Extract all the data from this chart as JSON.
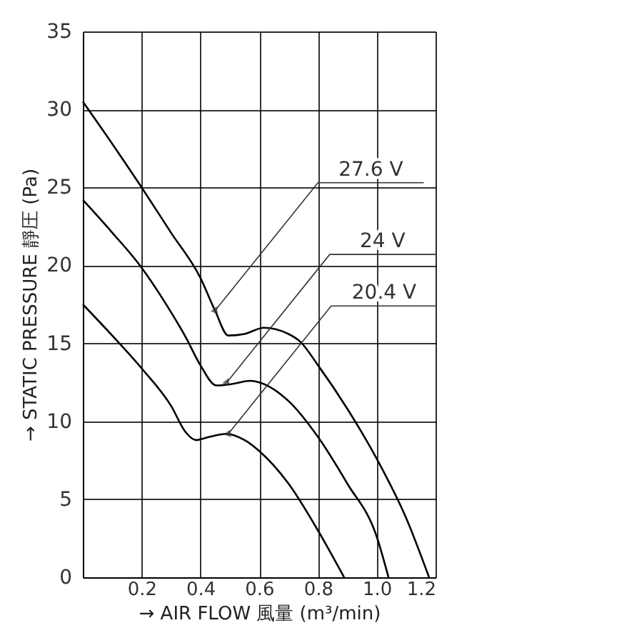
{
  "chart_data": {
    "type": "line",
    "xlabel": "→ AIR FLOW 風量 (m³/min)",
    "ylabel": "→ STATIC PRESSURE 靜圧 (Pa)",
    "xlim": [
      0,
      1.2
    ],
    "ylim": [
      0,
      35
    ],
    "xticks": [
      {
        "value": 0,
        "label": null
      },
      0.2,
      0.4,
      0.6,
      0.8,
      {
        "value": 1.0,
        "label": "1.0"
      },
      1.2
    ],
    "yticks": [
      0,
      5,
      10,
      15,
      20,
      25,
      30,
      35
    ],
    "grid": true,
    "marker": "none",
    "line_style": "solid",
    "series": [
      {
        "color": "#000000",
        "x": [
          0,
          0.1,
          0.2,
          0.3,
          0.4,
          0.45,
          0.495,
          0.55,
          0.616,
          0.7,
          0.74,
          0.8,
          0.9,
          1.0,
          1.1,
          1.178
        ],
        "values": [
          30.5,
          27.8,
          25.0,
          22.1,
          19.2,
          17.1,
          15.5,
          15.6,
          16.0,
          15.6,
          15.1,
          13.6,
          10.8,
          7.6,
          3.8,
          0
        ]
      },
      {
        "color": "#000000",
        "x": [
          0,
          0.1,
          0.19,
          0.3,
          0.35,
          0.4,
          0.455,
          0.51,
          0.57,
          0.6,
          0.7,
          0.8,
          0.9,
          1.0,
          1.04
        ],
        "values": [
          24.2,
          22.1,
          20.1,
          17.0,
          15.4,
          13.6,
          12.3,
          12.4,
          12.6,
          12.5,
          11.3,
          9.0,
          6.0,
          2.6,
          0
        ]
      },
      {
        "color": "#000000",
        "x": [
          0,
          0.1,
          0.2,
          0.3,
          0.35,
          0.384,
          0.43,
          0.488,
          0.55,
          0.6,
          0.7,
          0.8,
          0.889
        ],
        "values": [
          17.5,
          15.5,
          13.4,
          11.0,
          9.3,
          8.8,
          9.0,
          9.2,
          8.8,
          8.1,
          6.0,
          3.0,
          0
        ]
      }
    ],
    "annotations": [
      {
        "text": "27.6 V",
        "x": 0.45,
        "y": 17.1
      },
      {
        "text": "24 V",
        "x": 0.49,
        "y": 12.5
      },
      {
        "text": "20.4 V",
        "x": 0.495,
        "y": 9.2
      }
    ]
  }
}
